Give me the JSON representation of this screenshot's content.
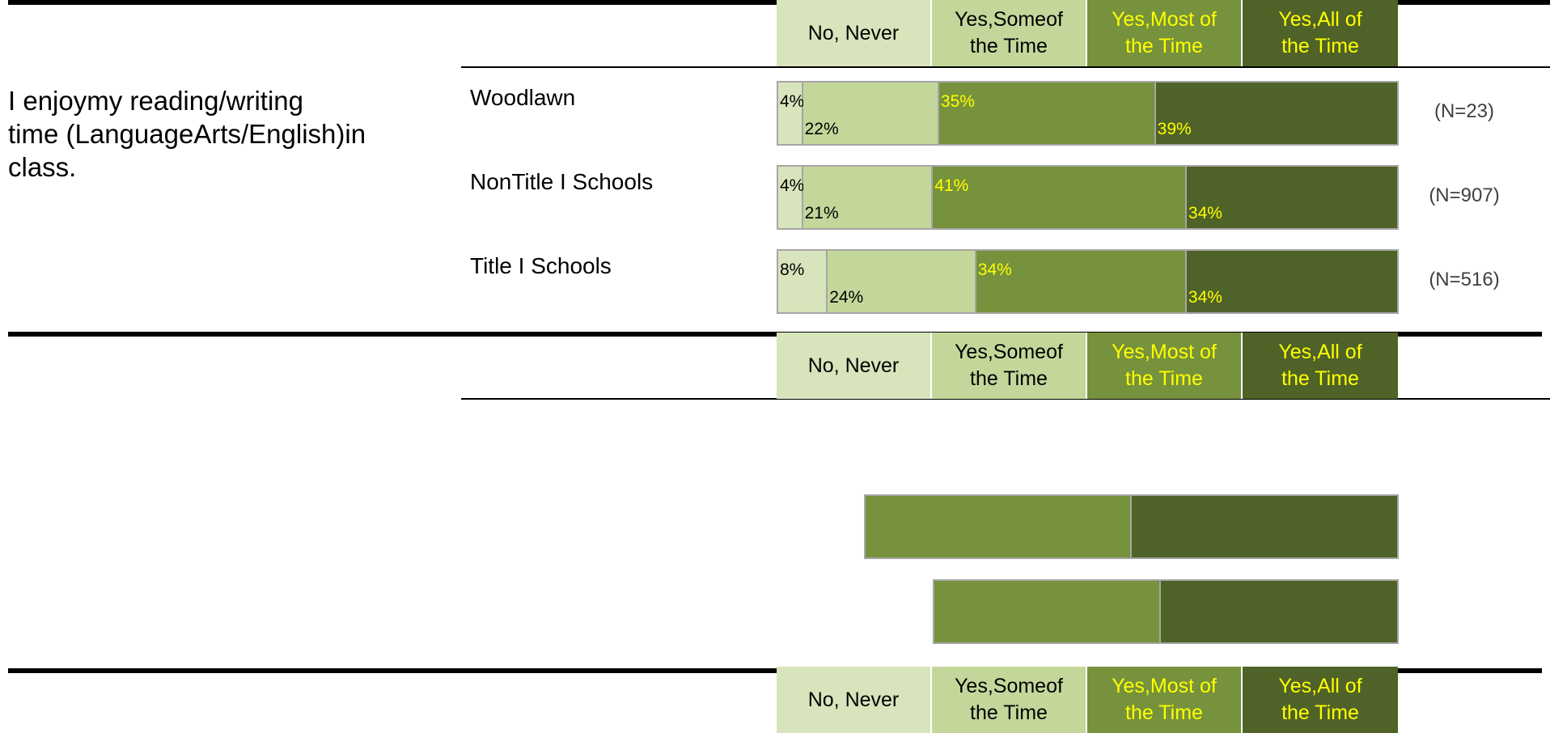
{
  "legend": [
    {
      "label": "No, Never",
      "color": "#d8e4bc",
      "text_color": "#000000"
    },
    {
      "label": "Yes,Someof\nthe Time",
      "color": "#c4d79b",
      "text_color": "#000000"
    },
    {
      "label": "Yes,Most of\nthe Time",
      "color": "#76923c",
      "text_color": "#ffff00"
    },
    {
      "label": "Yes,All of\nthe Time",
      "color": "#4f6228",
      "text_color": "#ffff00"
    }
  ],
  "question": "I enjoymy reading/writing\ntime (LanguageArts/English)in\nclass.",
  "chart_data": {
    "type": "bar",
    "orientation": "horizontal",
    "stacked": true,
    "categories": [
      "Woodlawn",
      "NonTitle I Schools",
      "Title I Schools"
    ],
    "series": [
      {
        "name": "No, Never",
        "values": [
          4,
          4,
          8
        ]
      },
      {
        "name": "Yes,Someof the Time",
        "values": [
          22,
          21,
          24
        ]
      },
      {
        "name": "Yes,Most of the Time",
        "values": [
          35,
          41,
          34
        ]
      },
      {
        "name": "Yes,All of the Time",
        "values": [
          39,
          34,
          34
        ]
      }
    ],
    "value_labels": [
      [
        "4%",
        "22%",
        "35%",
        "39%"
      ],
      [
        "4%",
        "21%",
        "41%",
        "34%"
      ],
      [
        "8%",
        "24%",
        "34%",
        "34%"
      ]
    ],
    "n_labels": [
      "(N=23)",
      "(N=907)",
      "(N=516)"
    ],
    "xlim": [
      0,
      100
    ],
    "legend_position": "top"
  },
  "ghost_bars": [
    {
      "values": [
        0,
        0,
        50,
        50
      ]
    },
    {
      "values": [
        0,
        0,
        49,
        51
      ]
    }
  ]
}
